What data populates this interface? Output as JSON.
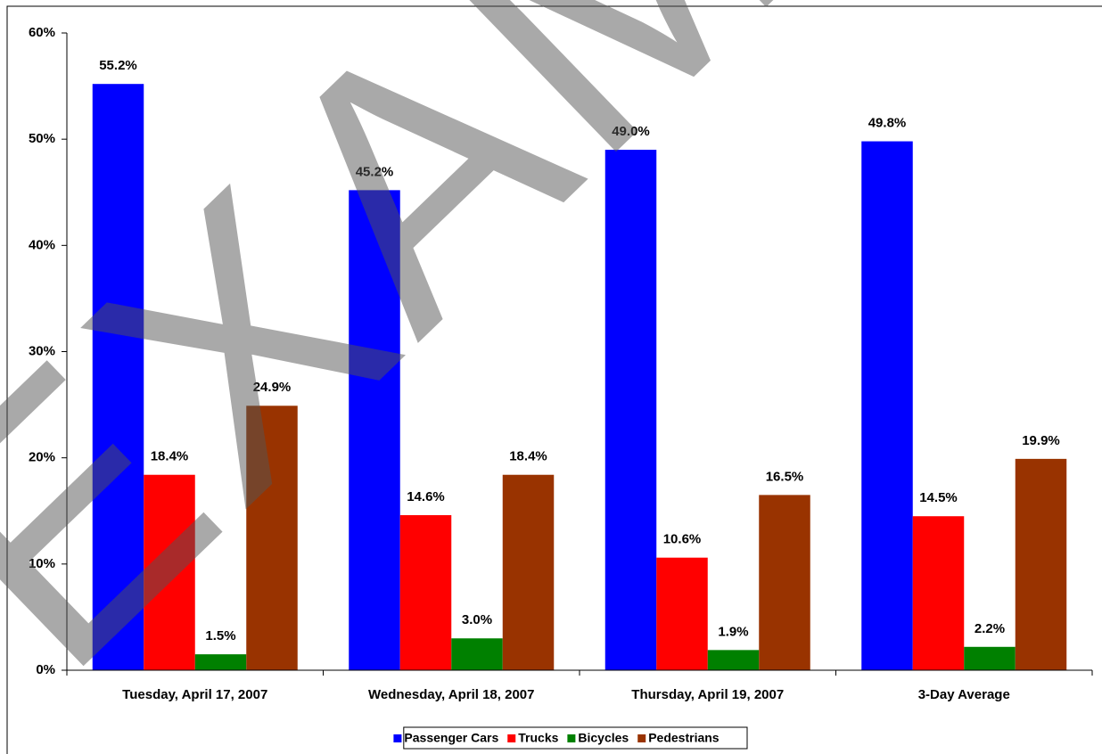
{
  "chart_data": {
    "type": "bar",
    "watermark": "EXAMPLE",
    "categories": [
      "Tuesday, April 17, 2007",
      "Wednesday, April 18, 2007",
      "Thursday, April 19, 2007",
      "3-Day Average"
    ],
    "series": [
      {
        "name": "Passenger Cars",
        "color": "#0000ff",
        "values": [
          55.2,
          45.2,
          49.0,
          49.8
        ],
        "value_labels": [
          "55.2%",
          "45.2%",
          "49.0%",
          "49.8%"
        ]
      },
      {
        "name": "Trucks",
        "color": "#ff0000",
        "values": [
          18.4,
          14.6,
          10.6,
          14.5
        ],
        "value_labels": [
          "18.4%",
          "14.6%",
          "10.6%",
          "14.5%"
        ]
      },
      {
        "name": "Bicycles",
        "color": "#008000",
        "values": [
          1.5,
          3.0,
          1.9,
          2.2
        ],
        "value_labels": [
          "1.5%",
          "3.0%",
          "1.9%",
          "2.2%"
        ]
      },
      {
        "name": "Pedestrians",
        "color": "#993300",
        "values": [
          24.9,
          18.4,
          16.5,
          19.9
        ],
        "value_labels": [
          "24.9%",
          "18.4%",
          "16.5%",
          "19.9%"
        ]
      }
    ],
    "ylim": [
      0,
      60
    ],
    "yticks": [
      {
        "value": 0,
        "label": "0%"
      },
      {
        "value": 10,
        "label": "10%"
      },
      {
        "value": 20,
        "label": "20%"
      },
      {
        "value": 30,
        "label": "30%"
      },
      {
        "value": 40,
        "label": "40%"
      },
      {
        "value": 50,
        "label": "50%"
      },
      {
        "value": 60,
        "label": "60%"
      }
    ],
    "legend": "bottom"
  }
}
